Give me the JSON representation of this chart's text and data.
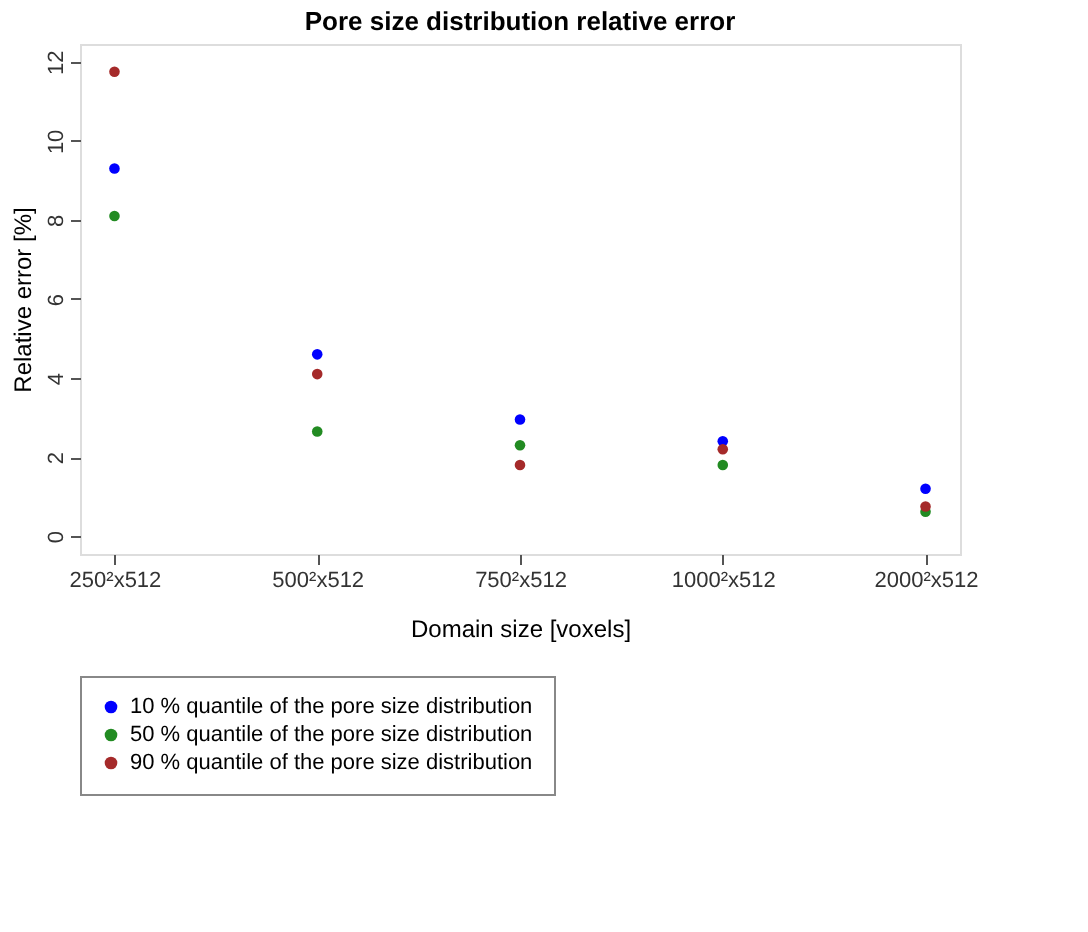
{
  "chart_data": {
    "type": "scatter",
    "title": "Pore size distribution relative error",
    "xlabel": "Domain size [voxels]",
    "ylabel": "Relative error [%]",
    "categories": [
      "250²x512",
      "500²x512",
      "750²x512",
      "1000²x512",
      "2000²x512"
    ],
    "series": [
      {
        "name": "10 % quantile of the pore size distribution",
        "color": "#0000ff",
        "values": [
          9.3,
          4.6,
          2.95,
          2.4,
          1.2
        ]
      },
      {
        "name": "50 % quantile of the pore size distribution",
        "color": "#228b22",
        "values": [
          8.1,
          2.65,
          2.3,
          1.8,
          0.62
        ]
      },
      {
        "name": "90 % quantile of the pore size distribution",
        "color": "#a52a2a",
        "values": [
          11.75,
          4.1,
          1.8,
          2.2,
          0.75
        ]
      }
    ],
    "ylim": [
      -0.45,
      12.45
    ],
    "yticks": [
      0,
      2,
      4,
      6,
      8,
      10,
      12
    ],
    "grid": false,
    "legend": "bottom",
    "marker": "circle"
  }
}
